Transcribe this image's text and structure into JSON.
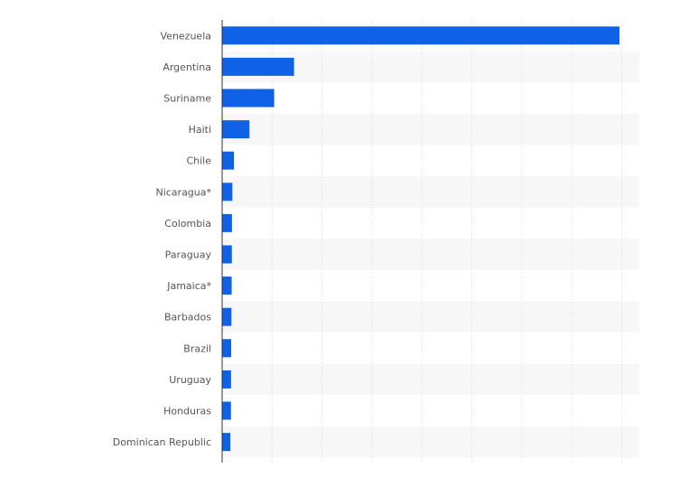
{
  "chart_data": {
    "type": "bar",
    "orientation": "horizontal",
    "title": "",
    "xlabel": "",
    "ylabel": "",
    "categories": [
      "Venezuela",
      "Argentina",
      "Suriname",
      "Haiti",
      "Chile",
      "Nicaragua*",
      "Colombia",
      "Paraguay",
      "Jamaica*",
      "Barbados",
      "Brazil",
      "Uruguay",
      "Honduras",
      "Dominican Republic"
    ],
    "values": [
      400,
      72.4,
      52.4,
      27.5,
      11.9,
      10.3,
      9.9,
      9.8,
      9.6,
      9.4,
      9.1,
      9.0,
      8.9,
      8.3
    ],
    "xlim": [
      0,
      420
    ],
    "x_tick_count": 8,
    "grid": true,
    "alternating_row_shading": true,
    "bar_color": "#0f62e6",
    "value_axis_labels_shown": false
  }
}
